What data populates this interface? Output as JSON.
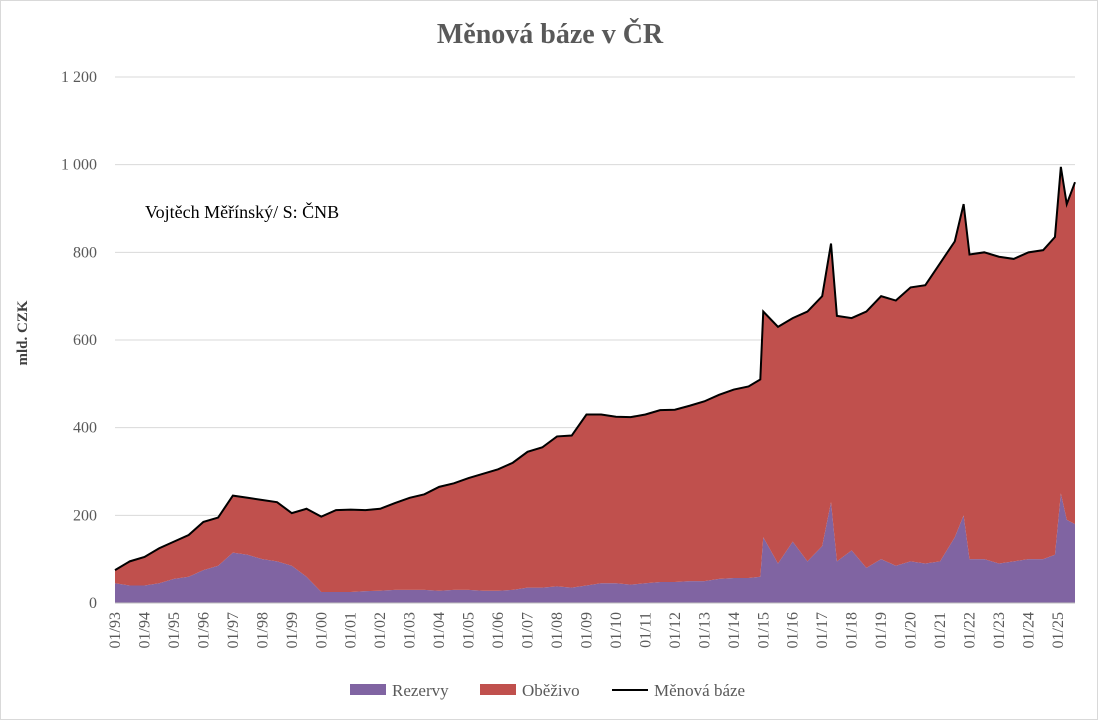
{
  "chart_data": {
    "type": "area",
    "title": "Měnová báze v ČR",
    "ylabel": "mld. CZK",
    "annotation": "Vojtěch Měřínský/ S: ČNB",
    "ylim": [
      0,
      1200
    ],
    "yticks": [
      0,
      200,
      400,
      600,
      800,
      1000,
      1200
    ],
    "ytick_labels": [
      "0",
      "200",
      "400",
      "600",
      "800",
      "1 000",
      "1 200"
    ],
    "xrange": [
      1993.0,
      2025.58
    ],
    "xtick_labels": [
      "01/93",
      "01/94",
      "01/95",
      "01/96",
      "01/97",
      "01/98",
      "01/99",
      "01/00",
      "01/01",
      "01/02",
      "01/03",
      "01/04",
      "01/05",
      "01/06",
      "01/07",
      "01/08",
      "01/09",
      "01/10",
      "01/11",
      "01/12",
      "01/13",
      "01/14",
      "01/15",
      "01/16",
      "01/17",
      "01/18",
      "01/19",
      "01/20",
      "01/21",
      "01/22",
      "01/23",
      "01/24",
      "01/25"
    ],
    "grid": true,
    "legend_position": "bottom",
    "x": [
      1993.0,
      1993.5,
      1994.0,
      1994.5,
      1995.0,
      1995.5,
      1996.0,
      1996.5,
      1997.0,
      1997.5,
      1998.0,
      1998.5,
      1999.0,
      1999.5,
      2000.0,
      2000.5,
      2001.0,
      2001.5,
      2002.0,
      2002.5,
      2003.0,
      2003.5,
      2004.0,
      2004.5,
      2005.0,
      2005.5,
      2006.0,
      2006.5,
      2007.0,
      2007.5,
      2008.0,
      2008.5,
      2009.0,
      2009.5,
      2010.0,
      2010.5,
      2011.0,
      2011.5,
      2012.0,
      2012.5,
      2013.0,
      2013.5,
      2014.0,
      2014.5,
      2014.9,
      2015.0,
      2015.5,
      2016.0,
      2016.5,
      2017.0,
      2017.3,
      2017.5,
      2018.0,
      2018.5,
      2019.0,
      2019.5,
      2020.0,
      2020.5,
      2021.0,
      2021.5,
      2021.8,
      2022.0,
      2022.5,
      2023.0,
      2023.5,
      2024.0,
      2024.5,
      2024.9,
      2025.1,
      2025.3,
      2025.58
    ],
    "series": [
      {
        "name": "Rezervy",
        "color": "#8064a2",
        "values": [
          45,
          40,
          40,
          45,
          55,
          60,
          75,
          85,
          115,
          110,
          100,
          95,
          85,
          60,
          25,
          25,
          25,
          27,
          28,
          30,
          30,
          30,
          28,
          30,
          30,
          28,
          28,
          30,
          35,
          35,
          38,
          35,
          40,
          45,
          45,
          42,
          45,
          48,
          48,
          50,
          50,
          55,
          57,
          57,
          60,
          150,
          90,
          140,
          95,
          130,
          230,
          95,
          120,
          80,
          100,
          85,
          95,
          90,
          95,
          150,
          200,
          100,
          100,
          90,
          95,
          100,
          100,
          110,
          250,
          190,
          180
        ]
      },
      {
        "name": "Oběživo",
        "color": "#c0504d",
        "values": [
          30,
          55,
          65,
          80,
          85,
          95,
          110,
          110,
          130,
          130,
          135,
          135,
          120,
          155,
          172,
          187,
          188,
          185,
          187,
          198,
          210,
          218,
          237,
          243,
          255,
          267,
          277,
          290,
          310,
          320,
          342,
          347,
          390,
          385,
          380,
          382,
          385,
          392,
          393,
          400,
          410,
          420,
          430,
          437,
          450,
          515,
          540,
          510,
          570,
          570,
          590,
          560,
          530,
          585,
          600,
          605,
          625,
          635,
          680,
          675,
          710,
          695,
          700,
          700,
          690,
          700,
          705,
          725,
          745,
          720,
          780
        ]
      },
      {
        "name": "Měnová báze",
        "color": "#000000",
        "values": [
          75,
          95,
          105,
          125,
          140,
          155,
          185,
          195,
          245,
          240,
          235,
          230,
          205,
          215,
          197,
          212,
          213,
          212,
          215,
          228,
          240,
          248,
          265,
          273,
          285,
          295,
          305,
          320,
          345,
          355,
          380,
          382,
          430,
          430,
          425,
          424,
          430,
          440,
          441,
          450,
          460,
          475,
          487,
          494,
          510,
          665,
          630,
          650,
          665,
          700,
          820,
          655,
          650,
          665,
          700,
          690,
          720,
          725,
          775,
          825,
          910,
          795,
          800,
          790,
          785,
          800,
          805,
          835,
          995,
          910,
          960
        ]
      }
    ]
  }
}
